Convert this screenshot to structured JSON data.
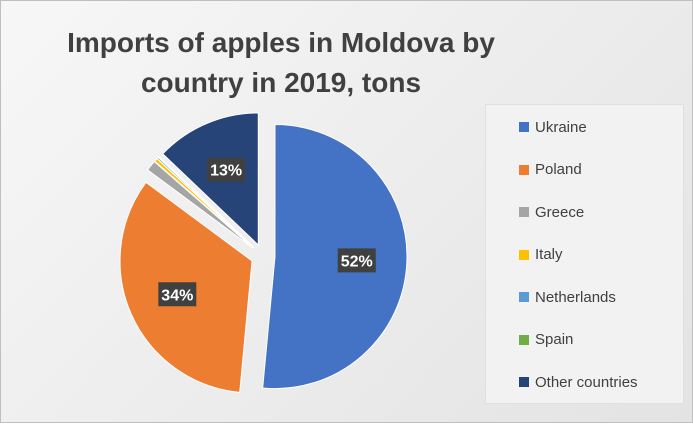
{
  "chart_data": {
    "type": "pie",
    "title": "Imports of apples in Moldova by country in 2019, tons",
    "categories": [
      "Ukraine",
      "Poland",
      "Greece",
      "Italy",
      "Netherlands",
      "Spain",
      "Other countries"
    ],
    "values": [
      52,
      34,
      1.3,
      0.4,
      0.2,
      0.1,
      13
    ],
    "colors": [
      "#4472C4",
      "#ED7D31",
      "#A5A5A5",
      "#FFC000",
      "#5B9BD5",
      "#70AD47",
      "#264478"
    ],
    "data_labels": [
      "52%",
      "34%",
      "",
      "",
      "",
      "",
      "13%"
    ],
    "legend_position": "right",
    "exploded": true
  }
}
